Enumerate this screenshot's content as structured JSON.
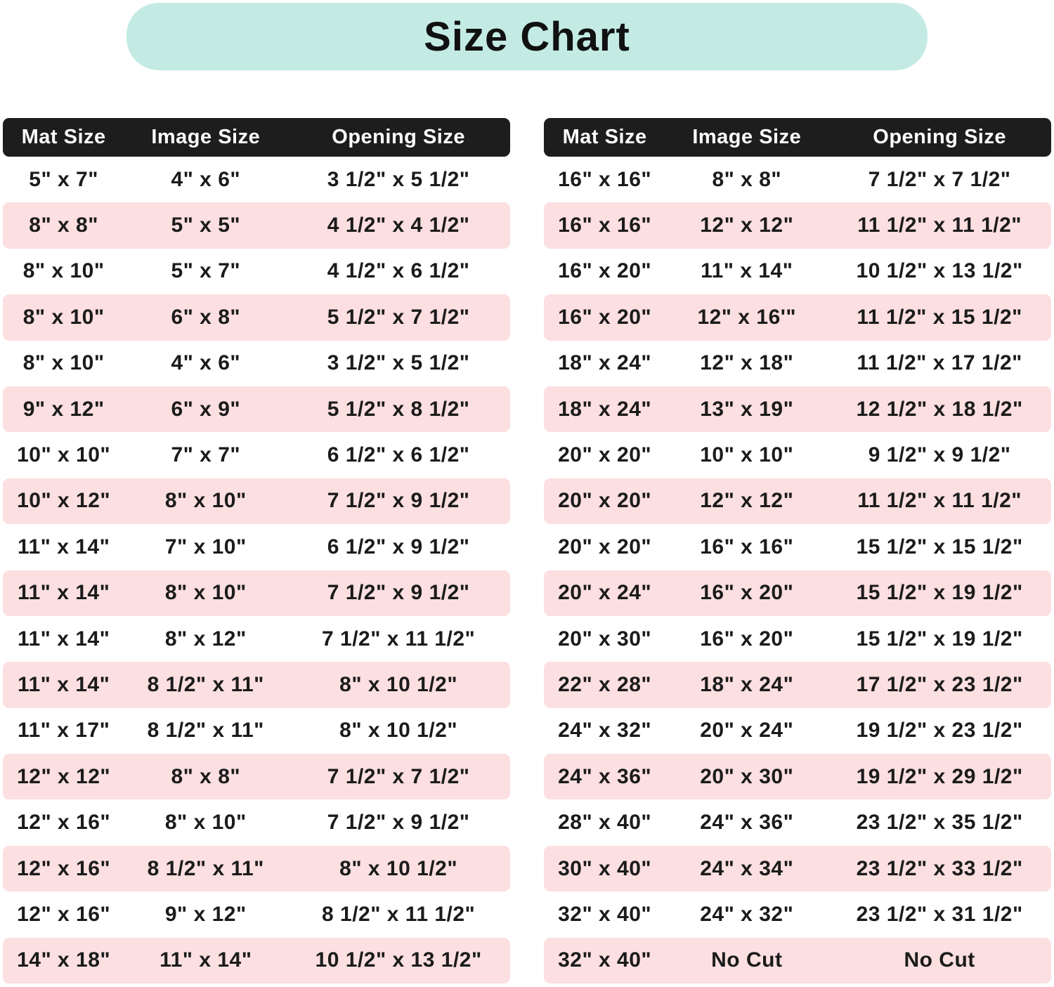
{
  "title": "Size Chart",
  "columns": [
    "Mat Size",
    "Image Size",
    "Opening Size"
  ],
  "colors": {
    "banner_bg": "#c3ebe3",
    "header_bg": "#1d1d1d",
    "header_text": "#ffffff",
    "row_pink": "#fcdfe0",
    "row_white": "#ffffff",
    "text": "#1b1b1b"
  },
  "chart_data": [
    {
      "type": "table",
      "side": "left",
      "title": "Size Chart",
      "columns": [
        "Mat Size",
        "Image Size",
        "Opening Size"
      ],
      "rows": [
        [
          "5\" x 7\"",
          "4\" x 6\"",
          "3 1/2\" x 5 1/2\""
        ],
        [
          "8\" x 8\"",
          "5\" x 5\"",
          "4 1/2\" x 4 1/2\""
        ],
        [
          "8\" x 10\"",
          "5\" x 7\"",
          "4 1/2\" x 6 1/2\""
        ],
        [
          "8\" x 10\"",
          "6\" x 8\"",
          "5 1/2\" x 7 1/2\""
        ],
        [
          "8\" x 10\"",
          "4\" x 6\"",
          "3 1/2\" x 5 1/2\""
        ],
        [
          "9\" x 12\"",
          "6\" x 9\"",
          "5 1/2\" x 8 1/2\""
        ],
        [
          "10\" x 10\"",
          "7\" x 7\"",
          "6 1/2\" x 6 1/2\""
        ],
        [
          "10\" x 12\"",
          "8\" x 10\"",
          "7 1/2\" x 9 1/2\""
        ],
        [
          "11\" x 14\"",
          "7\" x 10\"",
          "6 1/2\" x 9 1/2\""
        ],
        [
          "11\" x 14\"",
          "8\" x 10\"",
          "7 1/2\" x 9 1/2\""
        ],
        [
          "11\" x 14\"",
          "8\" x 12\"",
          "7 1/2\" x 11 1/2\""
        ],
        [
          "11\" x 14\"",
          "8 1/2\" x 11\"",
          "8\" x 10 1/2\""
        ],
        [
          "11\" x 17\"",
          "8 1/2\" x 11\"",
          "8\" x 10 1/2\""
        ],
        [
          "12\" x 12\"",
          "8\" x 8\"",
          "7 1/2\" x 7 1/2\""
        ],
        [
          "12\" x 16\"",
          "8\" x 10\"",
          "7 1/2\" x 9 1/2\""
        ],
        [
          "12\" x 16\"",
          "8 1/2\" x 11\"",
          "8\" x 10 1/2\""
        ],
        [
          "12\" x 16\"",
          "9\" x 12\"",
          "8 1/2\" x 11 1/2\""
        ],
        [
          "14\" x 18\"",
          "11\" x 14\"",
          "10 1/2\" x 13 1/2\""
        ]
      ]
    },
    {
      "type": "table",
      "side": "right",
      "title": "Size Chart",
      "columns": [
        "Mat Size",
        "Image Size",
        "Opening Size"
      ],
      "rows": [
        [
          "16\" x 16\"",
          "8\" x 8\"",
          "7 1/2\" x 7 1/2\""
        ],
        [
          "16\" x 16\"",
          "12\" x 12\"",
          "11 1/2\" x 11 1/2\""
        ],
        [
          "16\" x 20\"",
          "11\" x 14\"",
          "10 1/2\" x 13 1/2\""
        ],
        [
          "16\" x 20\"",
          "12\" x 16'\"",
          "11 1/2\" x 15 1/2\""
        ],
        [
          "18\" x 24\"",
          "12\" x 18\"",
          "11 1/2\" x 17 1/2\""
        ],
        [
          "18\" x 24\"",
          "13\" x 19\"",
          "12 1/2\" x 18 1/2\""
        ],
        [
          "20\" x 20\"",
          "10\" x 10\"",
          "9 1/2\" x 9 1/2\""
        ],
        [
          "20\" x 20\"",
          "12\" x 12\"",
          "11 1/2\" x 11 1/2\""
        ],
        [
          "20\" x 20\"",
          "16\" x 16\"",
          "15 1/2\" x 15 1/2\""
        ],
        [
          "20\" x 24\"",
          "16\" x 20\"",
          "15 1/2\" x 19 1/2\""
        ],
        [
          "20\" x 30\"",
          "16\" x 20\"",
          "15 1/2\" x 19 1/2\""
        ],
        [
          "22\" x 28\"",
          "18\" x 24\"",
          "17 1/2\" x 23 1/2\""
        ],
        [
          "24\" x 32\"",
          "20\" x 24\"",
          "19 1/2\" x 23 1/2\""
        ],
        [
          "24\" x 36\"",
          "20\" x 30\"",
          "19 1/2\" x 29 1/2\""
        ],
        [
          "28\" x 40\"",
          "24\" x 36\"",
          "23 1/2\" x 35 1/2\""
        ],
        [
          "30\" x 40\"",
          "24\" x 34\"",
          "23 1/2\" x 33 1/2\""
        ],
        [
          "32\" x 40\"",
          "24\" x 32\"",
          "23 1/2\" x 31 1/2\""
        ],
        [
          "32\" x 40\"",
          "No Cut",
          "No Cut"
        ]
      ]
    }
  ]
}
